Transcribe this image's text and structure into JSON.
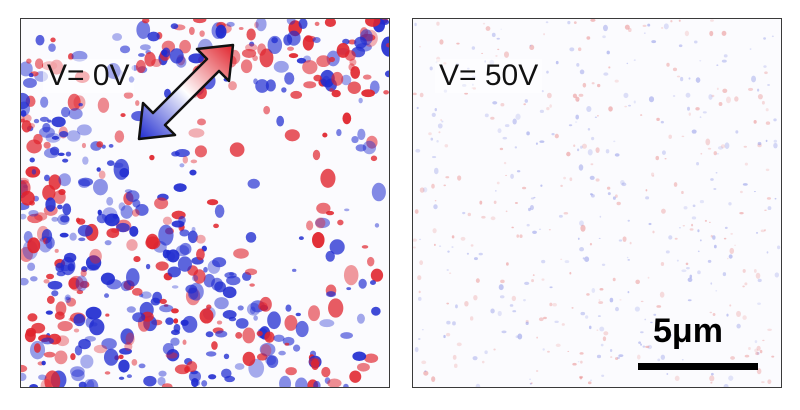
{
  "panels": [
    {
      "label": "V= 0V",
      "contrast": "strong",
      "colors": {
        "positive": "#e0232c",
        "negative": "#1f2bd0",
        "neutral": "#fbfbfe"
      },
      "icons": [
        "double-arrow-icon"
      ]
    },
    {
      "label": "V= 50V",
      "contrast": "weak",
      "colors": {
        "positive": "#e88a8a",
        "negative": "#8d95e6",
        "neutral": "#fbfbfe"
      },
      "scale_bar_label": "5μm"
    }
  ]
}
